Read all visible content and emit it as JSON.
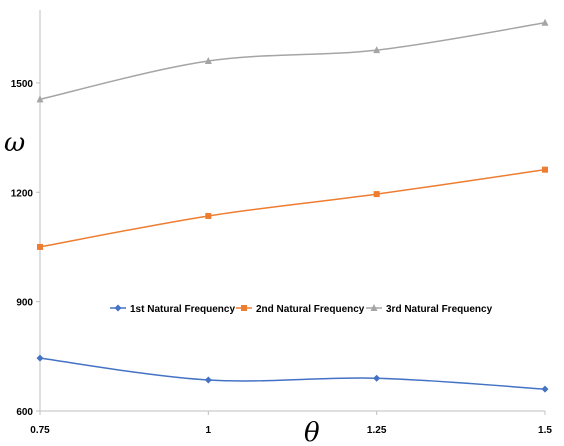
{
  "chart_data": {
    "type": "line",
    "title": "",
    "xlabel": "θ",
    "ylabel": "ω",
    "x": [
      0.75,
      1,
      1.25,
      1.5
    ],
    "x_tick_labels": [
      "0.75",
      "1",
      "1.25",
      "1.5"
    ],
    "y_ticks": [
      600,
      900,
      1200,
      1500
    ],
    "y_tick_labels": [
      "600",
      "900",
      "1200",
      "1500"
    ],
    "ylim": [
      600,
      1700
    ],
    "xlim": [
      0.75,
      1.5
    ],
    "grid": false,
    "legend_position": "center",
    "series": [
      {
        "name": "1st Natural Frequency",
        "values": [
          745,
          685,
          690,
          660
        ],
        "color": "#4472c4",
        "marker": "diamond"
      },
      {
        "name": "2nd Natural Frequency",
        "values": [
          1050,
          1135,
          1195,
          1262
        ],
        "color": "#ed7d31",
        "marker": "square"
      },
      {
        "name": "3rd Natural Frequency",
        "values": [
          1455,
          1560,
          1590,
          1665
        ],
        "color": "#a5a5a5",
        "marker": "triangle"
      }
    ]
  }
}
